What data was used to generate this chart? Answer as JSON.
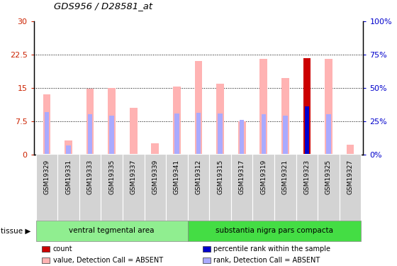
{
  "title": "GDS956 / D28581_at",
  "samples": [
    "GSM19329",
    "GSM19331",
    "GSM19333",
    "GSM19335",
    "GSM19337",
    "GSM19339",
    "GSM19341",
    "GSM19312",
    "GSM19315",
    "GSM19317",
    "GSM19319",
    "GSM19321",
    "GSM19323",
    "GSM19325",
    "GSM19327"
  ],
  "group1_label": "ventral tegmental area",
  "group2_label": "substantia nigra pars compacta",
  "group1_count": 7,
  "group2_count": 8,
  "value_absent": [
    13.5,
    3.2,
    14.8,
    15.0,
    10.5,
    2.5,
    15.3,
    21.0,
    16.0,
    7.5,
    21.5,
    17.2,
    21.7,
    21.5,
    2.2
  ],
  "rank_absent": [
    9.5,
    2.0,
    9.0,
    8.8,
    0.0,
    0.0,
    9.2,
    9.3,
    9.2,
    7.8,
    9.0,
    8.8,
    0.0,
    9.0,
    0.0
  ],
  "count_val": [
    0,
    0,
    0,
    0,
    0,
    0,
    0,
    0,
    0,
    0,
    0,
    0,
    21.7,
    0,
    0
  ],
  "percentile_rank": [
    0,
    0,
    0,
    0,
    0,
    0,
    0,
    0,
    0,
    0,
    0,
    0,
    10.8,
    0,
    0
  ],
  "ylim_left": [
    0,
    30
  ],
  "ylim_right": [
    0,
    100
  ],
  "yticks_left": [
    0,
    7.5,
    15,
    22.5,
    30
  ],
  "yticks_right": [
    0,
    25,
    50,
    75,
    100
  ],
  "left_color": "#cc2200",
  "right_color": "#0000cc",
  "bar_color_absent_value": "#ffb3b3",
  "bar_color_absent_rank": "#aaaaff",
  "bar_color_count": "#cc0000",
  "bar_color_pct": "#0000cc",
  "bar_width": 0.35,
  "tissue_label": "tissue"
}
